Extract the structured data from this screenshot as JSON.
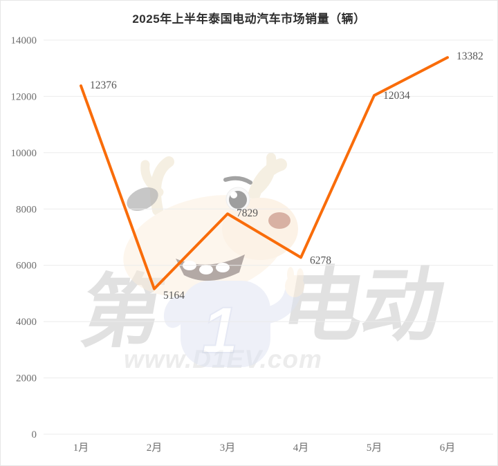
{
  "chart_data": {
    "type": "line",
    "title": "2025年上半年泰国电动汽车市场销量（辆）",
    "categories": [
      "1月",
      "2月",
      "3月",
      "4月",
      "5月",
      "6月"
    ],
    "values": [
      12376,
      5164,
      7829,
      6278,
      12034,
      13382
    ],
    "xlabel": "",
    "ylabel": "",
    "ylim": [
      0,
      14000
    ],
    "ytick_step": 2000,
    "grid": true,
    "legend": false,
    "line_color": "#F96C0A",
    "label_color": "#555555",
    "axis_label_color": "#6E6E6E",
    "grid_color": "#EBEBEB"
  },
  "watermark": {
    "left_text": "第",
    "right_text": "电动",
    "url": "www.D1EV.com",
    "mascot": "d1ev-deer-mascot",
    "color": "#E1E1E1"
  }
}
